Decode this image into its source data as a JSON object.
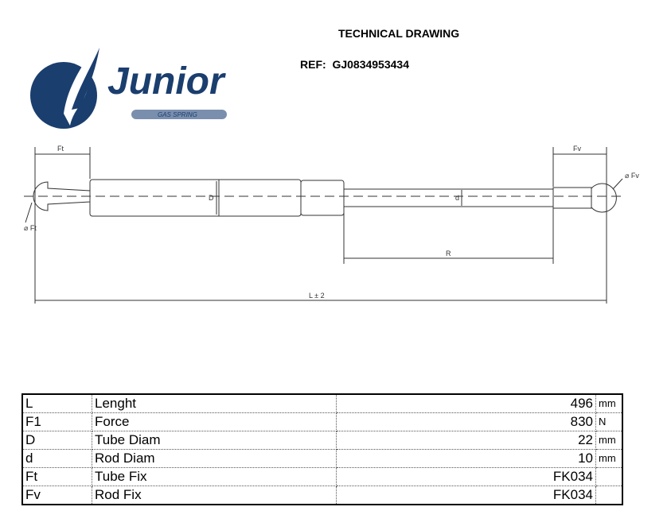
{
  "header": {
    "title": "TECHNICAL DRAWING",
    "ref_label": "REF:",
    "ref_value": "GJ0834953434"
  },
  "logo": {
    "brand": "Junior",
    "tagline": "GAS SPRING",
    "color": "#1a3e6e"
  },
  "drawing": {
    "labels": {
      "ft": "Ft",
      "fv": "Fv",
      "phi_ft": "⌀ Ft",
      "phi_fv": "⌀ Fv",
      "D": "D",
      "d": "d",
      "R": "R",
      "L": "L ± 2"
    }
  },
  "specs": [
    {
      "code": "L",
      "name": "Lenght",
      "value": "496",
      "unit": "mm"
    },
    {
      "code": "F1",
      "name": "Force",
      "value": "830",
      "unit": "N"
    },
    {
      "code": "D",
      "name": "Tube Diam",
      "value": "22",
      "unit": "mm"
    },
    {
      "code": "d",
      "name": "Rod Diam",
      "value": "10",
      "unit": "mm"
    },
    {
      "code": "Ft",
      "name": "Tube Fix",
      "value": "FK034",
      "unit": ""
    },
    {
      "code": "Fv",
      "name": "Rod Fix",
      "value": "FK034",
      "unit": ""
    }
  ]
}
